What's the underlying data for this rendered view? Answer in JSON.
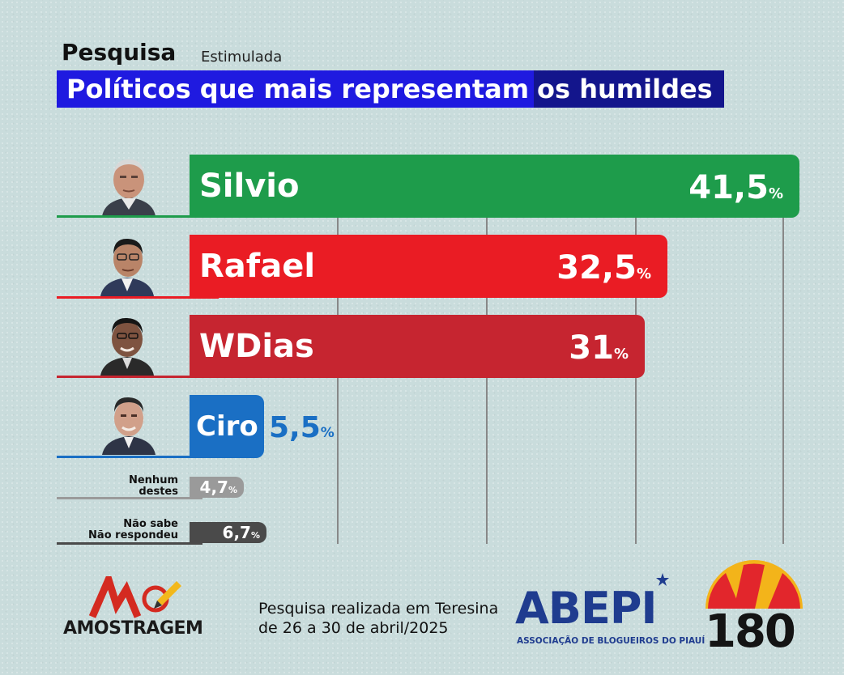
{
  "header": {
    "label": "Pesquisa",
    "sublabel": "Estimulada",
    "title_part1": "Políticos que mais representam",
    "title_part2": "os humildes"
  },
  "chart_data": {
    "type": "bar",
    "title": "Políticos que mais representam os humildes",
    "categories": [
      "Silvio",
      "Rafael",
      "WDias",
      "Ciro",
      "Nenhum destes",
      "Não sabe Não respondeu"
    ],
    "values": [
      41.5,
      32.5,
      31,
      5.5,
      4.7,
      6.7
    ],
    "value_labels": [
      "41,5",
      "32,5",
      "31",
      "5,5",
      "4,7",
      "6,7"
    ],
    "unit": "%",
    "colors": [
      "#1e9c4b",
      "#ea1c24",
      "#c62530",
      "#1a6fc4",
      "#9a9a9a",
      "#4a4a4a"
    ]
  },
  "bars": [
    {
      "name": "Silvio",
      "value": "41,5",
      "unit": "%"
    },
    {
      "name": "Rafael",
      "value": "32,5",
      "unit": "%"
    },
    {
      "name": "WDias",
      "value": "31",
      "unit": "%"
    },
    {
      "name": "Ciro",
      "value": "5,5",
      "unit": "%"
    }
  ],
  "minor": [
    {
      "line1": "Nenhum",
      "line2": "destes",
      "value": "4,7",
      "unit": "%"
    },
    {
      "line1": "Não sabe",
      "line2": "Não respondeu",
      "value": "6,7",
      "unit": "%"
    }
  ],
  "footer": {
    "line1": "Pesquisa realizada em Teresina",
    "line2": "de 26 a 30 de abril/2025",
    "amostragem": "AMOSTRAGEM",
    "abepi": "ABEPI",
    "abepi_sub": "ASSOCIAÇÃO DE BLOGUEIROS DO PIAUÍ",
    "brand_180": "180"
  }
}
